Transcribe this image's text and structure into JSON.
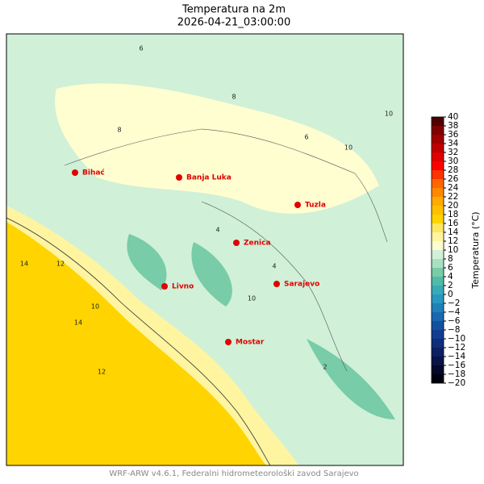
{
  "title": "Temperatura na 2m",
  "subtitle": "2026-04-21_03:00:00",
  "cities": [
    "Bihać",
    "Banja Luka",
    "Tuzla",
    "Zenica",
    "Sarajevo",
    "Livno",
    "Mostar"
  ],
  "contour_labels": [
    12,
    14,
    10,
    14,
    10,
    10,
    8,
    6,
    4,
    2,
    8,
    6,
    4,
    12,
    10
  ],
  "colorbar": {
    "label": "Temperatura (°C)",
    "lim": [
      -20,
      40
    ],
    "ticks": [
      {
        "value": -20,
        "label": "−20"
      },
      {
        "value": -18,
        "label": "−18"
      },
      {
        "value": -16,
        "label": "−16"
      },
      {
        "value": -14,
        "label": "−14"
      },
      {
        "value": -12,
        "label": "−12"
      },
      {
        "value": -10,
        "label": "−10"
      },
      {
        "value": -8,
        "label": "−8"
      },
      {
        "value": -6,
        "label": "−6"
      },
      {
        "value": -4,
        "label": "−4"
      },
      {
        "value": -2,
        "label": "−2"
      },
      0,
      2,
      4,
      6,
      8,
      10,
      12,
      14,
      16,
      18,
      20,
      22,
      24,
      26,
      28,
      30,
      32,
      34,
      36,
      38,
      40
    ],
    "colors": [
      "#00000f",
      "#04082a",
      "#081445",
      "#0b2060",
      "#0e2d7a",
      "#113c90",
      "#1450a0",
      "#1a68b0",
      "#2080b8",
      "#2898c0",
      "#38aab8",
      "#50bca8",
      "#78cca8",
      "#a8e0c0",
      "#d0f0d8",
      "#fefed0",
      "#fff5a0",
      "#ffe860",
      "#ffd400",
      "#ffc000",
      "#ffaa00",
      "#ff8800",
      "#ff6600",
      "#ff3300",
      "#ff0000",
      "#e00000",
      "#c00000",
      "#a00000",
      "#800000",
      "#500000"
    ]
  },
  "footer": "WRF-ARW v4.6.1, Federalni hidrometeorološki zavod Sarajevo"
}
